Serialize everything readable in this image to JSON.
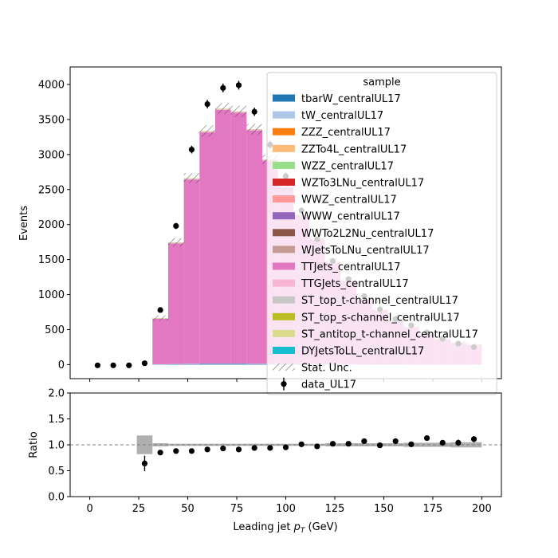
{
  "chart_data": [
    {
      "type": "bar",
      "stacked": true,
      "xlabel": "",
      "ylabel": "Events",
      "xlim": [
        -10,
        210
      ],
      "ylim": [
        -200,
        4250
      ],
      "yticks": [
        0,
        500,
        1000,
        1500,
        2000,
        2500,
        3000,
        3500,
        4000
      ],
      "bin_edges": [
        0,
        8,
        16,
        24,
        32,
        40,
        48,
        56,
        64,
        72,
        80,
        88,
        96,
        104,
        112,
        120,
        128,
        136,
        144,
        152,
        160,
        168,
        176,
        184,
        192,
        200
      ],
      "series": [
        {
          "name": "tbarW_centralUL17",
          "color": "#1f77b4",
          "values": [
            0,
            0,
            0,
            0,
            4,
            6,
            8,
            10,
            10,
            10,
            9,
            8,
            7,
            6,
            5,
            4,
            4,
            3,
            3,
            3,
            2,
            2,
            2,
            2,
            2
          ]
        },
        {
          "name": "tW_centralUL17",
          "color": "#aec7e8",
          "values": [
            0,
            0,
            0,
            0,
            2,
            4,
            5,
            6,
            6,
            6,
            5,
            5,
            4,
            4,
            3,
            3,
            2,
            2,
            2,
            2,
            2,
            1,
            1,
            1,
            1
          ]
        },
        {
          "name": "ZZZ_centralUL17",
          "color": "#ff7f0e",
          "values": [
            0,
            0,
            0,
            0,
            0,
            0,
            0,
            0,
            0,
            0,
            0,
            0,
            0,
            0,
            0,
            0,
            0,
            0,
            0,
            0,
            0,
            0,
            0,
            0,
            0
          ]
        },
        {
          "name": "ZZTo4L_centralUL17",
          "color": "#ffbb78",
          "values": [
            0,
            0,
            0,
            0,
            0,
            0,
            0,
            0,
            0,
            0,
            0,
            0,
            0,
            0,
            0,
            0,
            0,
            0,
            0,
            0,
            0,
            0,
            0,
            0,
            0
          ]
        },
        {
          "name": "WZZ_centralUL17",
          "color": "#98df8a",
          "values": [
            0,
            0,
            0,
            0,
            0,
            0,
            0,
            0,
            0,
            0,
            0,
            0,
            0,
            0,
            0,
            0,
            0,
            0,
            0,
            0,
            0,
            0,
            0,
            0,
            0
          ]
        },
        {
          "name": "WZTo3LNu_centralUL17",
          "color": "#d62728",
          "values": [
            0,
            0,
            0,
            0,
            0,
            0,
            0,
            0,
            0,
            0,
            0,
            0,
            0,
            0,
            0,
            0,
            0,
            0,
            0,
            0,
            0,
            0,
            0,
            0,
            0
          ]
        },
        {
          "name": "WWZ_centralUL17",
          "color": "#ff9896",
          "values": [
            0,
            0,
            0,
            0,
            0,
            0,
            0,
            0,
            0,
            0,
            0,
            0,
            0,
            0,
            0,
            0,
            0,
            0,
            0,
            0,
            0,
            0,
            0,
            0,
            0
          ]
        },
        {
          "name": "WWW_centralUL17",
          "color": "#9467bd",
          "values": [
            0,
            0,
            0,
            0,
            0,
            0,
            0,
            0,
            0,
            0,
            0,
            0,
            0,
            0,
            0,
            0,
            0,
            0,
            0,
            0,
            0,
            0,
            0,
            0,
            0
          ]
        },
        {
          "name": "WWTo2L2Nu_centralUL17",
          "color": "#8c564b",
          "values": [
            0,
            0,
            0,
            0,
            0,
            0,
            0,
            0,
            0,
            0,
            0,
            0,
            0,
            0,
            0,
            0,
            0,
            0,
            0,
            0,
            0,
            0,
            0,
            0,
            0
          ]
        },
        {
          "name": "WJetsToLNu_centralUL17",
          "color": "#c49c94",
          "values": [
            0,
            0,
            0,
            0,
            0,
            0,
            0,
            0,
            0,
            0,
            0,
            0,
            0,
            0,
            0,
            0,
            0,
            0,
            0,
            0,
            0,
            0,
            0,
            0,
            0
          ]
        },
        {
          "name": "TTJets_centralUL17",
          "color": "#e377c2",
          "values": [
            0,
            0,
            0,
            0,
            650,
            1720,
            2630,
            3300,
            3620,
            3580,
            3330,
            2900,
            2520,
            2120,
            1780,
            1450,
            1190,
            930,
            770,
            620,
            530,
            430,
            360,
            310,
            280
          ]
        },
        {
          "name": "TTGJets_centralUL17",
          "color": "#f7b6d2",
          "values": [
            0,
            0,
            0,
            0,
            6,
            10,
            12,
            12,
            12,
            12,
            11,
            10,
            9,
            8,
            7,
            6,
            5,
            4,
            4,
            3,
            3,
            3,
            2,
            2,
            2
          ]
        },
        {
          "name": "ST_top_t-channel_centralUL17",
          "color": "#c7c7c7",
          "values": [
            0,
            0,
            0,
            0,
            2,
            4,
            5,
            5,
            5,
            5,
            4,
            4,
            3,
            3,
            3,
            2,
            2,
            2,
            2,
            1,
            1,
            1,
            1,
            1,
            1
          ]
        },
        {
          "name": "ST_top_s-channel_centralUL17",
          "color": "#bcbd22",
          "values": [
            0,
            0,
            0,
            0,
            0,
            0,
            0,
            0,
            0,
            0,
            0,
            0,
            0,
            0,
            0,
            0,
            0,
            0,
            0,
            0,
            0,
            0,
            0,
            0,
            0
          ]
        },
        {
          "name": "ST_antitop_t-channel_centralUL17",
          "color": "#dbdb8d",
          "values": [
            0,
            0,
            0,
            0,
            1,
            2,
            3,
            3,
            3,
            3,
            3,
            2,
            2,
            2,
            2,
            1,
            1,
            1,
            1,
            1,
            1,
            1,
            1,
            1,
            1
          ]
        },
        {
          "name": "DYJetsToLL_centralUL17",
          "color": "#17becf",
          "values": [
            0,
            0,
            0,
            0,
            0,
            0,
            0,
            0,
            0,
            0,
            0,
            0,
            0,
            0,
            0,
            0,
            0,
            0,
            0,
            0,
            0,
            0,
            0,
            0,
            0
          ]
        }
      ],
      "stat_unc": {
        "name": "Stat. Unc.",
        "values": [
          0,
          0,
          0,
          0,
          40,
          60,
          70,
          80,
          80,
          80,
          75,
          70,
          65,
          60,
          55,
          50,
          45,
          40,
          38,
          35,
          32,
          30,
          28,
          26,
          25
        ]
      },
      "data": {
        "name": "data_UL17",
        "x": [
          4,
          12,
          20,
          28,
          36,
          44,
          52,
          60,
          68,
          76,
          84,
          92,
          100,
          108,
          116,
          124,
          132,
          140,
          148,
          156,
          164,
          172,
          180,
          188,
          196
        ],
        "y": [
          -10,
          -10,
          -10,
          20,
          780,
          1980,
          3070,
          3720,
          3950,
          3990,
          3610,
          3140,
          2690,
          2200,
          1790,
          1480,
          1220,
          980,
          790,
          650,
          560,
          460,
          370,
          300,
          250
        ],
        "yerr": [
          0,
          0,
          0,
          10,
          28,
          44,
          55,
          61,
          63,
          63,
          60,
          56,
          52,
          47,
          42,
          38,
          35,
          31,
          28,
          25,
          24,
          21,
          19,
          17,
          16
        ]
      },
      "legend": {
        "title": "sample",
        "placement": "top-right"
      }
    },
    {
      "type": "scatter",
      "xlabel": "Leading jet  $p_T$ (GeV)",
      "ylabel": "Ratio",
      "xlim": [
        -10,
        210
      ],
      "ylim": [
        0,
        2
      ],
      "xticks": [
        0,
        25,
        50,
        75,
        100,
        125,
        150,
        175,
        200
      ],
      "yticks": [
        "0.0",
        "0.5",
        "1.0",
        "1.5",
        "2.0"
      ],
      "reference_line": 1.0,
      "x": [
        28,
        36,
        44,
        52,
        60,
        68,
        76,
        84,
        92,
        100,
        108,
        116,
        124,
        132,
        140,
        148,
        156,
        164,
        172,
        180,
        188,
        196
      ],
      "y": [
        0.64,
        0.85,
        0.88,
        0.88,
        0.91,
        0.93,
        0.91,
        0.94,
        0.94,
        0.95,
        1.01,
        0.97,
        1.02,
        1.02,
        1.07,
        0.99,
        1.07,
        1.01,
        1.13,
        1.04,
        1.04,
        1.11
      ],
      "yerr": [
        0.15,
        0.04,
        0.03,
        0.02,
        0.02,
        0.02,
        0.02,
        0.02,
        0.02,
        0.02,
        0.02,
        0.02,
        0.03,
        0.03,
        0.03,
        0.03,
        0.04,
        0.04,
        0.05,
        0.05,
        0.06,
        0.06
      ],
      "unc_band": [
        0.18,
        0.03,
        0.02,
        0.02,
        0.02,
        0.02,
        0.02,
        0.02,
        0.02,
        0.02,
        0.02,
        0.02,
        0.03,
        0.03,
        0.03,
        0.03,
        0.03,
        0.04,
        0.04,
        0.04,
        0.05,
        0.05
      ]
    }
  ]
}
